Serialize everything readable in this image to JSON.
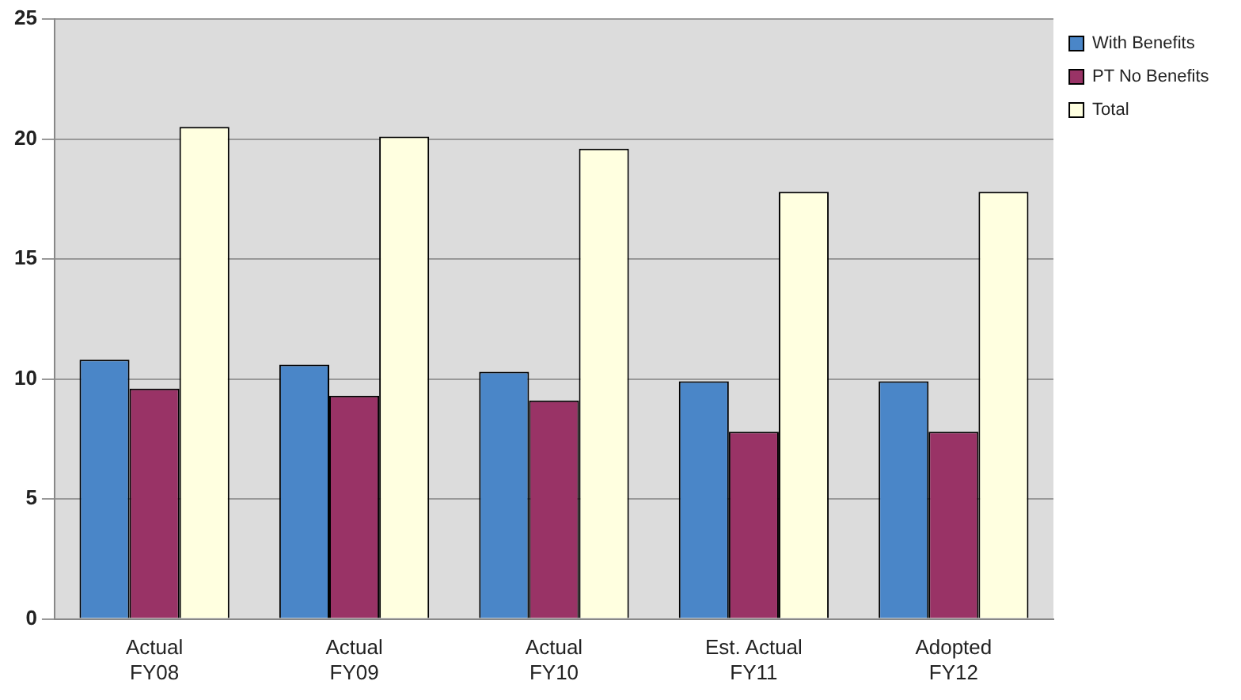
{
  "chart_data": {
    "type": "bar",
    "categories": [
      "Actual FY08",
      "Actual FY09",
      "Actual FY10",
      "Est. Actual FY11",
      "Adopted FY12"
    ],
    "series": [
      {
        "name": "With Benefits",
        "color": "#4a86c8",
        "values": [
          10.8,
          10.6,
          10.3,
          9.9,
          9.9
        ]
      },
      {
        "name": "PT No Benefits",
        "color": "#993366",
        "values": [
          9.6,
          9.3,
          9.1,
          7.8,
          7.8
        ]
      },
      {
        "name": "Total",
        "color": "#ffffe0",
        "values": [
          20.5,
          20.1,
          19.6,
          17.8,
          17.8
        ]
      }
    ],
    "ylim": [
      0,
      25
    ],
    "yticks": [
      0,
      5,
      10,
      15,
      20,
      25
    ],
    "grid": "y",
    "legend": "top right"
  }
}
